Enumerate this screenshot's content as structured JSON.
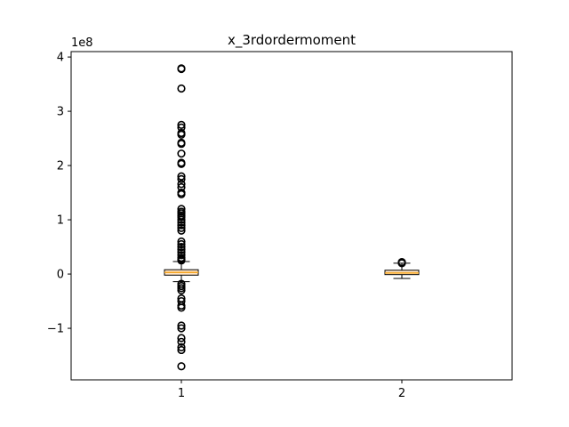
{
  "chart_data": {
    "type": "box",
    "title": "x_3rdordermoment",
    "xlabel": "",
    "ylabel": "",
    "y_offset_label": "1e8",
    "x_tick_labels": [
      "1",
      "2"
    ],
    "y_tick_labels": [
      "−1",
      "0",
      "1",
      "2",
      "3",
      "4"
    ],
    "y_ticks": [
      -1,
      0,
      1,
      2,
      3,
      4
    ],
    "ylim": [
      -1.95,
      4.1
    ],
    "box_color": "#ffe4c4",
    "median_color": "#f5a623",
    "boxes": [
      {
        "category": "1",
        "q1": -0.02,
        "median": 0.03,
        "q3": 0.08,
        "whisker_low": -0.14,
        "whisker_high": 0.23,
        "fliers": [
          3.79,
          3.78,
          3.42,
          2.75,
          2.7,
          2.6,
          2.57,
          2.42,
          2.4,
          2.22,
          2.05,
          2.03,
          1.8,
          1.75,
          1.66,
          1.6,
          1.5,
          1.47,
          1.2,
          1.15,
          1.12,
          1.08,
          1.05,
          1.0,
          0.95,
          0.9,
          0.85,
          0.8,
          0.6,
          0.55,
          0.5,
          0.45,
          0.4,
          0.35,
          0.3,
          0.27,
          0.25,
          -0.18,
          -0.22,
          -0.26,
          -0.3,
          -0.45,
          -0.5,
          -0.58,
          -0.62,
          -0.95,
          -1.0,
          -1.18,
          -1.25,
          -1.35,
          -1.4,
          -1.7
        ]
      },
      {
        "category": "2",
        "q1": -0.01,
        "median": 0.02,
        "q3": 0.07,
        "whisker_low": -0.08,
        "whisker_high": 0.2,
        "fliers": [
          0.22,
          0.2
        ]
      }
    ]
  }
}
